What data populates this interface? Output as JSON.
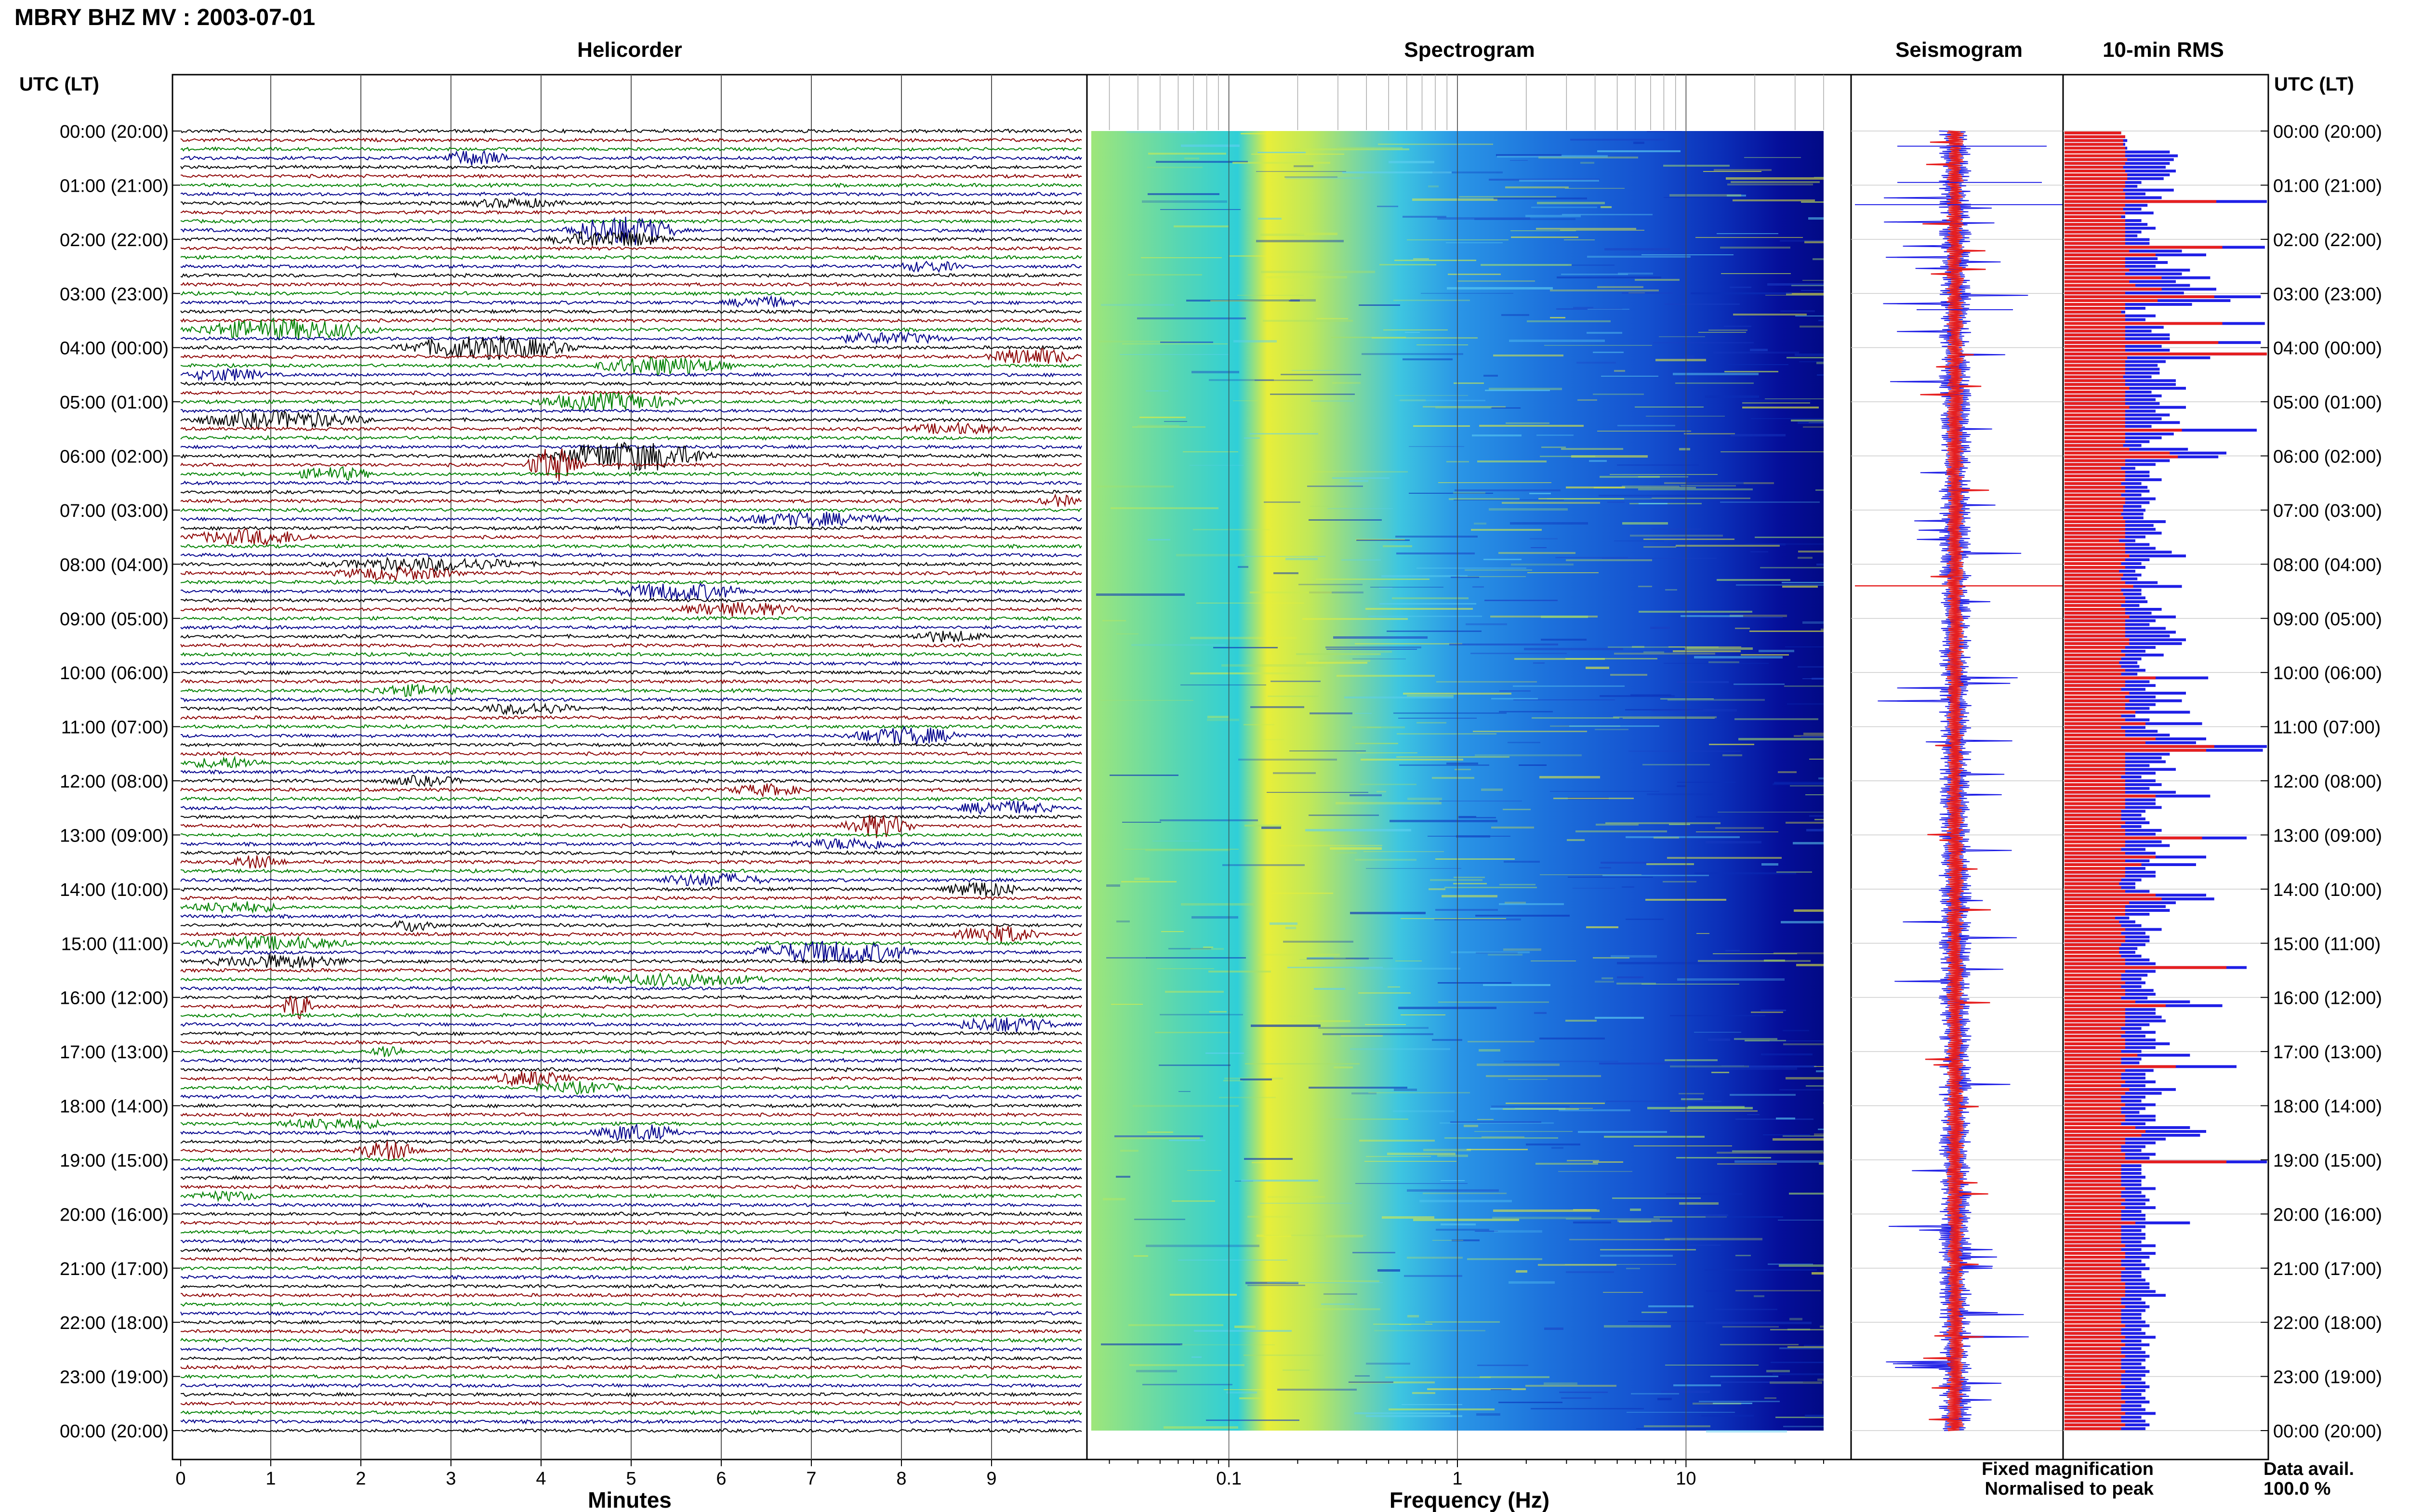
{
  "header": {
    "title": "MBRY BHZ MV : 2003-07-01",
    "time_axis_label": "UTC (LT)"
  },
  "panels": {
    "helicorder": "Helicorder",
    "spectrogram": "Spectrogram",
    "seismogram": "Seismogram",
    "rms": "10-min RMS"
  },
  "legend": {
    "fixed": "Fixed magnification",
    "normalised": "Normalised to peak",
    "fixed_color": "#1f1fe6",
    "normalised_color": "#e61f1f"
  },
  "data_avail": {
    "label": "Data avail.",
    "value": "100.0 %"
  },
  "chart_data": [
    {
      "type": "line",
      "panel": "helicorder",
      "xlabel": "Minutes",
      "x_ticks": [
        "0",
        "1",
        "2",
        "3",
        "4",
        "5",
        "6",
        "7",
        "8",
        "9"
      ],
      "xlim": [
        0,
        10
      ],
      "trace_colors": [
        "#000000",
        "#8b0000",
        "#008000",
        "#00008b"
      ],
      "traces_per_hour": 6,
      "y_ticks": [
        "00:00 (20:00)",
        "01:00 (21:00)",
        "02:00 (22:00)",
        "03:00 (23:00)",
        "04:00 (00:00)",
        "05:00 (01:00)",
        "06:00 (02:00)",
        "07:00 (03:00)",
        "08:00 (04:00)",
        "09:00 (05:00)",
        "10:00 (06:00)",
        "11:00 (07:00)",
        "12:00 (08:00)",
        "13:00 (09:00)",
        "14:00 (10:00)",
        "15:00 (11:00)",
        "16:00 (12:00)",
        "17:00 (13:00)",
        "18:00 (14:00)",
        "19:00 (15:00)",
        "20:00 (16:00)",
        "21:00 (17:00)",
        "22:00 (18:00)",
        "23:00 (19:00)",
        "00:00 (20:00)"
      ]
    },
    {
      "type": "heatmap",
      "panel": "spectrogram",
      "xlabel": "Frequency (Hz)",
      "x_scale": "log",
      "x_ticks": [
        "0.1",
        "1",
        "10"
      ],
      "xlim": [
        0.025,
        40
      ]
    },
    {
      "type": "line",
      "panel": "seismogram",
      "series": [
        {
          "name": "Fixed magnification",
          "color": "#1f1fe6"
        },
        {
          "name": "Normalised to peak",
          "color": "#e61f1f"
        }
      ]
    },
    {
      "type": "bar",
      "panel": "rms",
      "interval_minutes": 10,
      "series": [
        {
          "name": "Fixed magnification",
          "color": "#1f1fe6",
          "values": [
            0.28,
            0.3,
            0.31,
            0.3,
            0.31,
            0.52,
            0.56,
            0.54,
            0.52,
            0.5,
            0.55,
            0.52,
            0.49,
            0.38,
            0.36,
            0.54,
            0.4,
            0.48,
            1.0,
            0.41,
            0.38,
            0.44,
            0.3,
            0.38,
            0.41,
            0.45,
            0.38,
            0.36,
            0.42,
            0.42,
            0.99,
            0.58,
            0.7,
            0.46,
            0.51,
            0.45,
            0.62,
            0.58,
            0.72,
            0.55,
            0.62,
            0.75,
            0.59,
            0.97,
            0.82,
            0.63,
            0.4,
            0.3,
            0.45,
            0.4,
            0.99,
            0.49,
            0.43,
            0.52,
            0.52,
            0.97,
            0.48,
            0.52,
            1.0,
            0.72,
            0.5,
            0.46,
            0.47,
            0.47,
            0.43,
            0.55,
            0.55,
            0.6,
            0.43,
            0.48,
            0.45,
            0.47,
            0.6,
            0.45,
            0.52,
            0.48,
            0.57,
            0.43,
            0.95,
            0.54,
            0.48,
            0.42,
            0.38,
            0.61,
            0.8,
            0.76,
            0.52,
            0.45,
            0.35,
            0.42,
            0.42,
            0.48,
            0.38,
            0.41,
            0.42,
            0.38,
            0.45,
            0.42,
            0.38,
            0.4,
            0.39,
            0.39,
            0.5,
            0.44,
            0.45,
            0.48,
            0.4,
            0.35,
            0.42,
            0.45,
            0.53,
            0.6,
            0.42,
            0.38,
            0.4,
            0.35,
            0.38,
            0.36,
            0.46,
            0.58,
            0.38,
            0.38,
            0.4,
            0.41,
            0.37,
            0.48,
            0.43,
            0.55,
            0.45,
            0.42,
            0.5,
            0.55,
            0.52,
            0.6,
            0.58,
            0.45,
            0.4,
            0.49,
            0.38,
            0.36,
            0.37,
            0.4,
            0.36,
            0.71,
            0.42,
            0.45,
            0.4,
            0.6,
            0.45,
            0.58,
            0.45,
            0.42,
            0.62,
            0.35,
            0.42,
            0.68,
            0.4,
            0.46,
            0.52,
            0.7,
            0.65,
            1.0,
            0.98,
            0.52,
            0.48,
            0.5,
            0.42,
            0.55,
            0.45,
            0.38,
            0.45,
            0.48,
            0.42,
            0.55,
            0.72,
            0.45,
            0.45,
            0.48,
            0.4,
            0.38,
            0.4,
            0.42,
            0.38,
            0.48,
            0.45,
            0.9,
            0.48,
            0.52,
            0.4,
            0.45,
            0.7,
            0.42,
            0.65,
            0.4,
            0.45,
            0.45,
            0.38,
            0.35,
            0.35,
            0.42,
            0.7,
            0.74,
            0.55,
            0.5,
            0.52,
            0.42,
            0.32,
            0.35,
            0.38,
            0.48,
            0.4,
            0.42,
            0.42,
            0.4,
            0.36,
            0.35,
            0.38,
            0.42,
            0.45,
            0.9,
            0.45,
            0.41,
            0.38,
            0.4,
            0.38,
            0.44,
            0.45,
            0.41,
            0.62,
            0.78,
            0.45,
            0.45,
            0.48,
            0.5,
            0.42,
            0.38,
            0.45,
            0.4,
            0.45,
            0.52,
            0.45,
            0.38,
            0.62,
            0.38,
            0.37,
            0.85,
            0.44,
            0.4,
            0.4,
            0.45,
            0.4,
            0.55,
            0.48,
            0.4,
            0.38,
            0.45,
            0.4,
            0.37,
            0.45,
            0.45,
            0.4,
            0.62,
            0.7,
            0.67,
            0.5,
            0.45,
            0.4,
            0.38,
            0.45,
            0.42,
            1.0,
            0.38,
            0.38,
            0.38,
            0.4,
            0.38,
            0.38,
            0.45,
            0.38,
            0.4,
            0.42,
            0.4,
            0.45,
            0.38,
            0.4,
            0.4,
            0.62,
            0.4,
            0.38,
            0.4,
            0.4,
            0.38,
            0.45,
            0.38,
            0.45,
            0.42,
            0.38,
            0.4,
            0.42,
            0.38,
            0.38,
            0.4,
            0.42,
            0.42,
            0.45,
            0.5,
            0.38,
            0.4,
            0.42,
            0.4,
            0.38,
            0.38,
            0.4,
            0.42,
            0.38,
            0.4,
            0.45,
            0.38,
            0.42,
            0.38,
            0.4,
            0.42,
            0.4,
            0.38,
            0.4,
            0.42,
            0.4,
            0.38,
            0.4,
            0.42,
            0.4,
            0.38,
            0.4,
            0.42,
            0.38,
            0.4,
            0.45,
            0.38,
            0.4,
            0.42,
            0.4
          ]
        },
        {
          "name": "Normalised to peak",
          "color": "#e61f1f",
          "values": [
            0.28,
            0.3,
            0.29,
            0.29,
            0.3,
            0.3,
            0.3,
            0.31,
            0.3,
            0.29,
            0.3,
            0.31,
            0.31,
            0.3,
            0.3,
            0.29,
            0.3,
            0.3,
            0.75,
            0.3,
            0.29,
            0.3,
            0.28,
            0.3,
            0.3,
            0.3,
            0.3,
            0.3,
            0.3,
            0.3,
            0.78,
            0.32,
            0.45,
            0.3,
            0.3,
            0.3,
            0.32,
            0.3,
            0.48,
            0.32,
            0.35,
            0.48,
            0.3,
            0.74,
            0.46,
            0.3,
            0.3,
            0.28,
            0.3,
            0.3,
            0.78,
            0.3,
            0.3,
            0.3,
            0.3,
            0.76,
            0.3,
            0.3,
            1.0,
            0.31,
            0.3,
            0.3,
            0.3,
            0.3,
            0.29,
            0.3,
            0.3,
            0.32,
            0.3,
            0.3,
            0.3,
            0.3,
            0.32,
            0.3,
            0.3,
            0.3,
            0.3,
            0.3,
            0.58,
            0.3,
            0.3,
            0.3,
            0.29,
            0.32,
            0.52,
            0.56,
            0.3,
            0.3,
            0.28,
            0.3,
            0.3,
            0.3,
            0.28,
            0.3,
            0.3,
            0.28,
            0.3,
            0.3,
            0.29,
            0.29,
            0.28,
            0.29,
            0.3,
            0.3,
            0.3,
            0.3,
            0.3,
            0.27,
            0.3,
            0.3,
            0.3,
            0.32,
            0.3,
            0.28,
            0.3,
            0.27,
            0.29,
            0.28,
            0.3,
            0.34,
            0.28,
            0.29,
            0.3,
            0.3,
            0.28,
            0.3,
            0.3,
            0.32,
            0.3,
            0.3,
            0.3,
            0.3,
            0.3,
            0.32,
            0.32,
            0.3,
            0.28,
            0.3,
            0.28,
            0.27,
            0.28,
            0.3,
            0.28,
            0.45,
            0.3,
            0.3,
            0.28,
            0.32,
            0.3,
            0.32,
            0.3,
            0.3,
            0.35,
            0.28,
            0.3,
            0.4,
            0.28,
            0.3,
            0.3,
            0.45,
            0.4,
            0.74,
            0.7,
            0.3,
            0.3,
            0.3,
            0.3,
            0.3,
            0.3,
            0.28,
            0.3,
            0.3,
            0.3,
            0.3,
            0.45,
            0.3,
            0.3,
            0.3,
            0.28,
            0.28,
            0.28,
            0.3,
            0.28,
            0.3,
            0.3,
            0.68,
            0.3,
            0.3,
            0.28,
            0.3,
            0.45,
            0.3,
            0.38,
            0.3,
            0.3,
            0.3,
            0.28,
            0.27,
            0.28,
            0.3,
            0.45,
            0.48,
            0.32,
            0.3,
            0.3,
            0.3,
            0.25,
            0.27,
            0.28,
            0.3,
            0.28,
            0.3,
            0.3,
            0.28,
            0.27,
            0.27,
            0.28,
            0.3,
            0.3,
            0.8,
            0.3,
            0.28,
            0.28,
            0.3,
            0.28,
            0.3,
            0.3,
            0.28,
            0.35,
            0.5,
            0.3,
            0.3,
            0.3,
            0.3,
            0.3,
            0.28,
            0.3,
            0.28,
            0.3,
            0.3,
            0.3,
            0.28,
            0.36,
            0.28,
            0.28,
            0.55,
            0.3,
            0.28,
            0.28,
            0.3,
            0.28,
            0.32,
            0.3,
            0.28,
            0.28,
            0.3,
            0.28,
            0.28,
            0.3,
            0.3,
            0.28,
            0.35,
            0.4,
            0.38,
            0.3,
            0.3,
            0.28,
            0.28,
            0.3,
            0.3,
            0.8,
            0.28,
            0.28,
            0.28,
            0.28,
            0.28,
            0.28,
            0.3,
            0.28,
            0.28,
            0.3,
            0.28,
            0.3,
            0.28,
            0.28,
            0.28,
            0.35,
            0.28,
            0.28,
            0.28,
            0.28,
            0.28,
            0.3,
            0.28,
            0.3,
            0.3,
            0.28,
            0.28,
            0.3,
            0.28,
            0.28,
            0.28,
            0.3,
            0.3,
            0.3,
            0.3,
            0.28,
            0.28,
            0.3,
            0.28,
            0.28,
            0.28,
            0.28,
            0.3,
            0.28,
            0.28,
            0.3,
            0.28,
            0.3,
            0.28,
            0.28,
            0.3,
            0.28,
            0.28,
            0.28,
            0.3,
            0.28,
            0.28,
            0.28,
            0.3,
            0.28,
            0.28,
            0.28,
            0.3,
            0.28,
            0.28,
            0.3,
            0.28,
            0.28,
            0.3,
            0.28
          ]
        }
      ]
    }
  ]
}
